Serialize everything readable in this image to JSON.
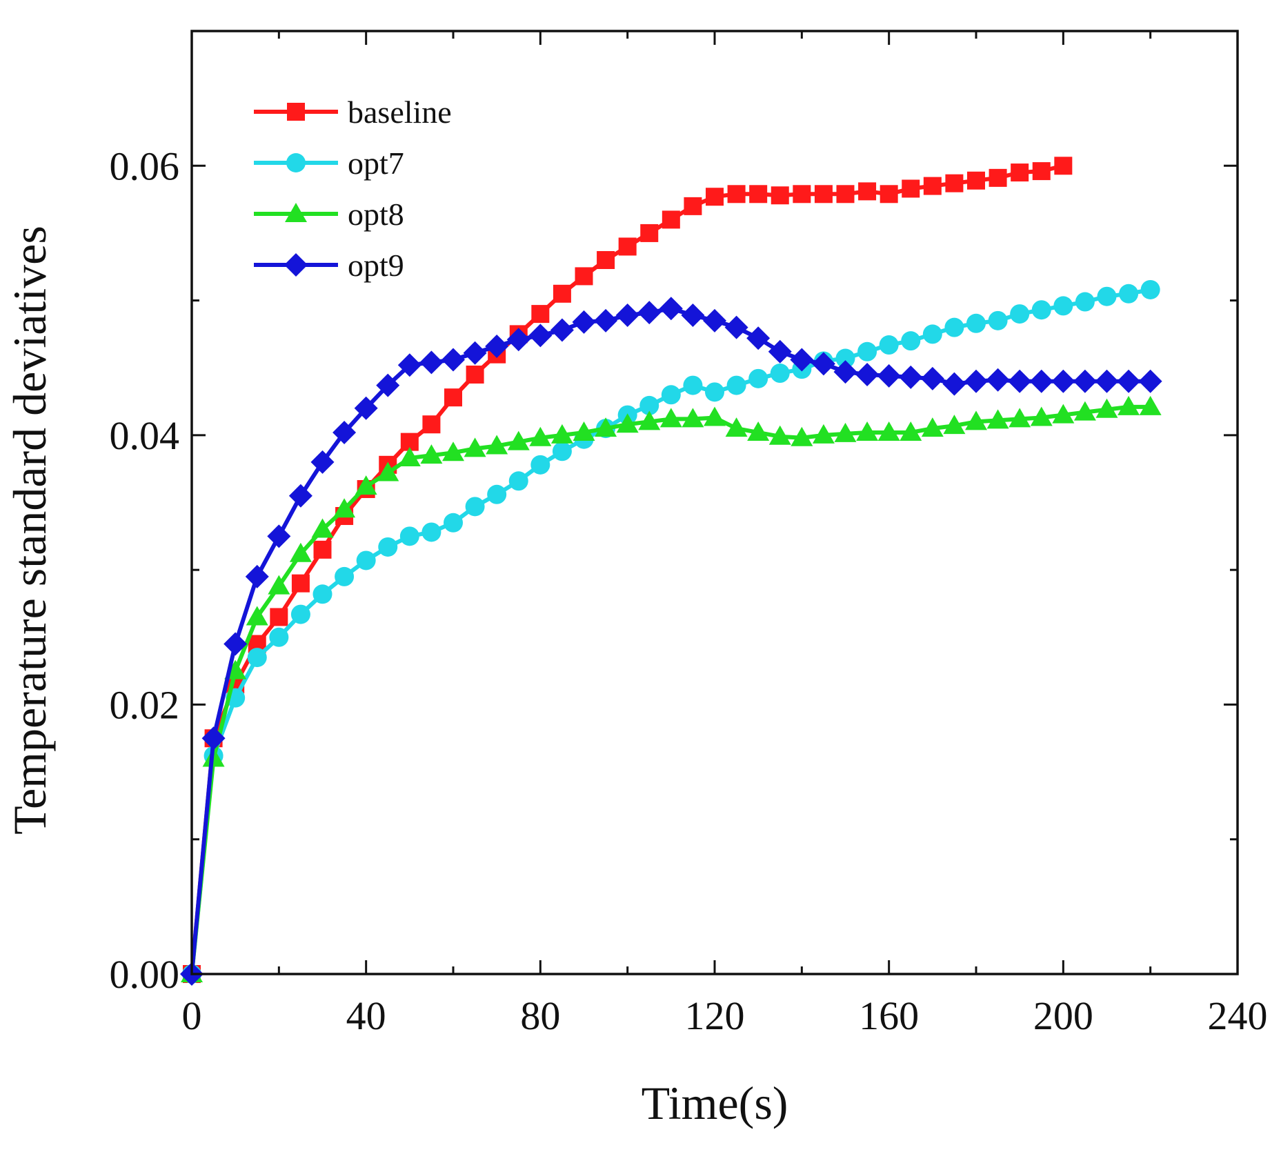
{
  "chart_data": {
    "type": "line",
    "title": "",
    "xlabel": "Time(s)",
    "ylabel": "Temperature standard deviatives",
    "xlim": [
      0,
      240
    ],
    "ylim": [
      0,
      0.07
    ],
    "x_ticks": [
      0,
      40,
      80,
      120,
      160,
      200,
      240
    ],
    "x_tick_labels": [
      "0",
      "40",
      "80",
      "120",
      "160",
      "200",
      "240"
    ],
    "y_ticks": [
      0,
      0.02,
      0.04,
      0.06
    ],
    "y_tick_labels": [
      "0.00",
      "0.02",
      "0.04",
      "0.06"
    ],
    "y_minor_ticks": [
      0.01,
      0.03,
      0.05
    ],
    "grid": false,
    "legend_position": "top-left",
    "series": [
      {
        "name": "baseline",
        "color": "#ff1a1a",
        "marker": "square",
        "x": [
          0,
          5,
          10,
          15,
          20,
          25,
          30,
          35,
          40,
          45,
          50,
          55,
          60,
          65,
          70,
          75,
          80,
          85,
          90,
          95,
          100,
          105,
          110,
          115,
          120,
          125,
          130,
          135,
          140,
          145,
          150,
          155,
          160,
          165,
          170,
          175,
          180,
          185,
          190,
          195,
          200
        ],
        "y": [
          0.0,
          0.0175,
          0.0215,
          0.0245,
          0.0265,
          0.029,
          0.0315,
          0.034,
          0.036,
          0.0378,
          0.0395,
          0.0408,
          0.0428,
          0.0445,
          0.046,
          0.0475,
          0.049,
          0.0505,
          0.0518,
          0.053,
          0.054,
          0.055,
          0.056,
          0.057,
          0.0577,
          0.0579,
          0.0579,
          0.0578,
          0.0579,
          0.0579,
          0.0579,
          0.0581,
          0.0579,
          0.0583,
          0.0585,
          0.0587,
          0.0589,
          0.0591,
          0.0595,
          0.0596,
          0.06
        ]
      },
      {
        "name": "opt7",
        "color": "#22d8e8",
        "marker": "circle",
        "x": [
          0,
          5,
          10,
          15,
          20,
          25,
          30,
          35,
          40,
          45,
          50,
          55,
          60,
          65,
          70,
          75,
          80,
          85,
          90,
          95,
          100,
          105,
          110,
          115,
          120,
          125,
          130,
          135,
          140,
          145,
          150,
          155,
          160,
          165,
          170,
          175,
          180,
          185,
          190,
          195,
          200,
          205,
          210,
          215,
          220
        ],
        "y": [
          0.0,
          0.0162,
          0.0205,
          0.0235,
          0.025,
          0.0267,
          0.0282,
          0.0295,
          0.0307,
          0.0317,
          0.0325,
          0.0328,
          0.0335,
          0.0347,
          0.0356,
          0.0366,
          0.0378,
          0.0388,
          0.0397,
          0.0405,
          0.0415,
          0.0422,
          0.043,
          0.0437,
          0.0432,
          0.0437,
          0.0442,
          0.0446,
          0.0449,
          0.0455,
          0.0457,
          0.0462,
          0.0467,
          0.047,
          0.0475,
          0.048,
          0.0483,
          0.0485,
          0.049,
          0.0493,
          0.0496,
          0.0499,
          0.0503,
          0.0505,
          0.0508
        ]
      },
      {
        "name": "opt8",
        "color": "#22e022",
        "marker": "triangle",
        "x": [
          0,
          5,
          10,
          15,
          20,
          25,
          30,
          35,
          40,
          45,
          50,
          55,
          60,
          65,
          70,
          75,
          80,
          85,
          90,
          95,
          100,
          105,
          110,
          115,
          120,
          125,
          130,
          135,
          140,
          145,
          150,
          155,
          160,
          165,
          170,
          175,
          180,
          185,
          190,
          195,
          200,
          205,
          210,
          215,
          220
        ],
        "y": [
          0.0,
          0.016,
          0.0225,
          0.0265,
          0.0288,
          0.0312,
          0.033,
          0.0345,
          0.0362,
          0.0372,
          0.0383,
          0.0385,
          0.0387,
          0.039,
          0.0392,
          0.0395,
          0.0398,
          0.04,
          0.0402,
          0.0405,
          0.0408,
          0.041,
          0.0412,
          0.0412,
          0.0413,
          0.0405,
          0.0402,
          0.0399,
          0.0398,
          0.04,
          0.0401,
          0.0402,
          0.0402,
          0.0402,
          0.0405,
          0.0407,
          0.041,
          0.0411,
          0.0412,
          0.0413,
          0.0415,
          0.0417,
          0.0419,
          0.0421,
          0.0421
        ]
      },
      {
        "name": "opt9",
        "color": "#1414d8",
        "marker": "diamond",
        "x": [
          0,
          5,
          10,
          15,
          20,
          25,
          30,
          35,
          40,
          45,
          50,
          55,
          60,
          65,
          70,
          75,
          80,
          85,
          90,
          95,
          100,
          105,
          110,
          115,
          120,
          125,
          130,
          135,
          140,
          145,
          150,
          155,
          160,
          165,
          170,
          175,
          180,
          185,
          190,
          195,
          200,
          205,
          210,
          215,
          220
        ],
        "y": [
          0.0,
          0.0175,
          0.0245,
          0.0295,
          0.0325,
          0.0355,
          0.038,
          0.0402,
          0.042,
          0.0437,
          0.0452,
          0.0454,
          0.0456,
          0.0461,
          0.0466,
          0.0471,
          0.0474,
          0.0478,
          0.0484,
          0.0485,
          0.0489,
          0.0491,
          0.0494,
          0.0489,
          0.0485,
          0.048,
          0.0472,
          0.0462,
          0.0456,
          0.0453,
          0.0447,
          0.0445,
          0.0444,
          0.0443,
          0.0442,
          0.0438,
          0.044,
          0.0441,
          0.044,
          0.044,
          0.044,
          0.044,
          0.044,
          0.044,
          0.044
        ]
      }
    ]
  }
}
